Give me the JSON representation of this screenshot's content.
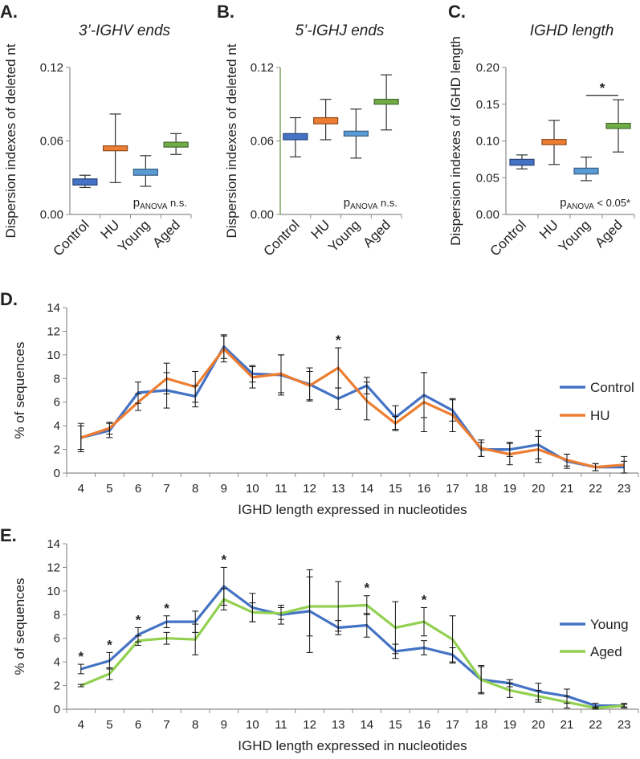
{
  "chart_data": [
    {
      "panel": "A.",
      "type": "box",
      "title": "3’-IGHV ends",
      "ylabel": "Dispersion indexes of deleted nt",
      "ylim": [
        0,
        0.12
      ],
      "yticks": [
        "0.00",
        "0.06",
        "0.12"
      ],
      "categories": [
        "Control",
        "HU",
        "Young",
        "Aged"
      ],
      "boxes": [
        {
          "name": "Control",
          "color": "#4472c4",
          "min": 0.022,
          "q1": 0.024,
          "q3": 0.029,
          "max": 0.032
        },
        {
          "name": "HU",
          "color": "#ed7d31",
          "min": 0.026,
          "q1": 0.052,
          "q3": 0.056,
          "max": 0.082
        },
        {
          "name": "Young",
          "color": "#5b9bd5",
          "min": 0.023,
          "q1": 0.032,
          "q3": 0.037,
          "max": 0.048
        },
        {
          "name": "Aged",
          "color": "#70ad47",
          "min": 0.049,
          "q1": 0.055,
          "q3": 0.059,
          "max": 0.066
        }
      ],
      "annotation": {
        "prefix": "p",
        "sub": "ANOVA",
        "suffix": " n.s."
      }
    },
    {
      "panel": "B.",
      "type": "box",
      "title": "5’-IGHJ ends",
      "ylabel": "Dispersion indexes of deleted nt",
      "ylim": [
        0,
        0.12
      ],
      "yticks": [
        "0.00",
        "0.06",
        "0.12"
      ],
      "categories": [
        "Control",
        "HU",
        "Young",
        "Aged"
      ],
      "boxes": [
        {
          "name": "Control",
          "color": "#4472c4",
          "min": 0.047,
          "q1": 0.061,
          "q3": 0.066,
          "max": 0.079
        },
        {
          "name": "HU",
          "color": "#ed7d31",
          "min": 0.061,
          "q1": 0.074,
          "q3": 0.079,
          "max": 0.094
        },
        {
          "name": "Young",
          "color": "#5b9bd5",
          "min": 0.046,
          "q1": 0.064,
          "q3": 0.068,
          "max": 0.086
        },
        {
          "name": "Aged",
          "color": "#70ad47",
          "min": 0.069,
          "q1": 0.09,
          "q3": 0.094,
          "max": 0.114
        }
      ],
      "annotation": {
        "prefix": "p",
        "sub": "ANOVA",
        "suffix": " n.s."
      }
    },
    {
      "panel": "C.",
      "type": "box",
      "title": "IGHD length",
      "ylabel": "Dispersion indexes of IGHD length",
      "ylim": [
        0,
        0.2
      ],
      "yticks": [
        "0.00",
        "0.05",
        "0.10",
        "0.15",
        "0.20"
      ],
      "categories": [
        "Control",
        "HU",
        "Young",
        "Aged"
      ],
      "boxes": [
        {
          "name": "Control",
          "color": "#4472c4",
          "min": 0.062,
          "q1": 0.067,
          "q3": 0.075,
          "max": 0.081
        },
        {
          "name": "HU",
          "color": "#ed7d31",
          "min": 0.068,
          "q1": 0.095,
          "q3": 0.102,
          "max": 0.128
        },
        {
          "name": "Young",
          "color": "#5b9bd5",
          "min": 0.046,
          "q1": 0.055,
          "q3": 0.063,
          "max": 0.078
        },
        {
          "name": "Aged",
          "color": "#70ad47",
          "min": 0.085,
          "q1": 0.117,
          "q3": 0.124,
          "max": 0.156
        }
      ],
      "significance": {
        "between": [
          "Young",
          "Aged"
        ],
        "label": "*",
        "y": 0.162
      },
      "annotation": {
        "prefix": "p",
        "sub": "ANOVA",
        "suffix": " < 0.05*"
      }
    },
    {
      "panel": "D.",
      "type": "line",
      "ylabel": "% of sequences",
      "xlabel": "IGHD length expressed in nucleotides",
      "ylim": [
        0,
        14
      ],
      "yticks": [
        0,
        2,
        4,
        6,
        8,
        10,
        12,
        14
      ],
      "x": [
        4,
        5,
        6,
        7,
        8,
        9,
        10,
        11,
        12,
        13,
        14,
        15,
        16,
        17,
        18,
        19,
        20,
        21,
        22,
        23
      ],
      "series": [
        {
          "name": "Control",
          "color": "#4472c4",
          "values": [
            3.0,
            3.6,
            6.8,
            7.0,
            6.5,
            10.7,
            8.4,
            8.3,
            7.5,
            6.3,
            7.4,
            4.7,
            6.6,
            5.3,
            2.0,
            2.0,
            2.4,
            1.0,
            0.5,
            0.5
          ],
          "err": [
            1.2,
            0.6,
            0.9,
            1.5,
            0.9,
            1.0,
            0.7,
            1.7,
            1.4,
            0.9,
            0.7,
            1.0,
            1.9,
            0.9,
            0.6,
            0.6,
            1.2,
            0.6,
            0.3,
            0.5
          ]
        },
        {
          "name": "HU",
          "color": "#ed7d31",
          "values": [
            3.0,
            3.8,
            6.0,
            8.0,
            7.3,
            10.5,
            8.1,
            8.4,
            7.4,
            8.9,
            6.1,
            4.2,
            6.0,
            4.9,
            2.1,
            1.6,
            2.0,
            1.1,
            0.5,
            0.7
          ],
          "err": [
            1.0,
            0.5,
            0.7,
            1.3,
            1.3,
            1.1,
            0.9,
            1.6,
            1.2,
            1.7,
            1.6,
            0.6,
            2.5,
            1.4,
            0.7,
            0.9,
            1.1,
            0.5,
            0.3,
            0.7
          ]
        }
      ],
      "significance": [
        {
          "x": 13,
          "label": "*"
        }
      ]
    },
    {
      "panel": "E.",
      "type": "line",
      "ylabel": "% of sequences",
      "xlabel": "IGHD length expressed in nucleotides",
      "ylim": [
        0,
        14
      ],
      "yticks": [
        0,
        2,
        4,
        6,
        8,
        10,
        12,
        14
      ],
      "x": [
        4,
        5,
        6,
        7,
        8,
        9,
        10,
        11,
        12,
        13,
        14,
        15,
        16,
        17,
        18,
        19,
        20,
        21,
        22,
        23
      ],
      "series": [
        {
          "name": "Young",
          "color": "#4472c4",
          "values": [
            3.4,
            4.1,
            6.3,
            7.4,
            7.4,
            10.4,
            8.6,
            8.0,
            8.3,
            6.9,
            7.1,
            4.9,
            5.2,
            4.6,
            2.5,
            2.2,
            1.5,
            1.1,
            0.3,
            0.3
          ],
          "err": [
            0.4,
            0.7,
            0.6,
            0.5,
            0.9,
            1.6,
            1.2,
            0.8,
            3.5,
            0.6,
            1.0,
            0.6,
            0.6,
            0.6,
            1.2,
            0.3,
            0.7,
            0.6,
            0.2,
            0.2
          ]
        },
        {
          "name": "Aged",
          "color": "#92d050",
          "values": [
            2.0,
            3.0,
            5.8,
            6.0,
            5.9,
            9.3,
            8.2,
            8.1,
            8.7,
            8.7,
            8.8,
            6.9,
            7.4,
            5.9,
            2.5,
            1.6,
            1.1,
            0.6,
            0.1,
            0.3
          ],
          "err": [
            0.1,
            0.5,
            0.4,
            0.5,
            1.3,
            0.9,
            0.8,
            0.5,
            2.5,
            2.1,
            0.8,
            2.2,
            1.2,
            2.0,
            1.1,
            0.6,
            0.5,
            0.5,
            0.1,
            0.1
          ]
        }
      ],
      "significance": [
        {
          "x": 4,
          "label": "*"
        },
        {
          "x": 5,
          "label": "*"
        },
        {
          "x": 6,
          "label": "*"
        },
        {
          "x": 7,
          "label": "*"
        },
        {
          "x": 9,
          "label": "*"
        },
        {
          "x": 14,
          "label": "*"
        },
        {
          "x": 16,
          "label": "*"
        }
      ]
    }
  ]
}
